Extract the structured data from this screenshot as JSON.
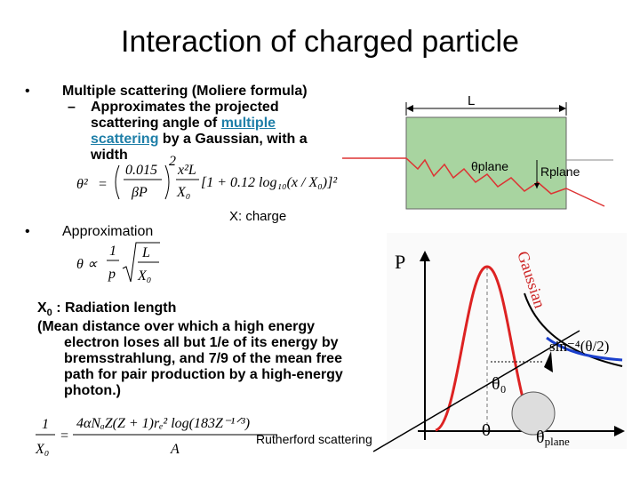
{
  "title": "Interaction of charged particle",
  "bullets": [
    {
      "marker": "•",
      "text": "Multiple scattering (Moliere formula)",
      "sub": {
        "marker": "–",
        "before": "Approximates the projected scattering angle of ",
        "link": "multiple scattering",
        "after": " by a Gaussian, with a width"
      },
      "formula": {
        "lhs": "θ²",
        "eq": "=",
        "num1": "0.015",
        "den1": "βP",
        "pow": "2",
        "num2": "x²L",
        "den2": "X₀",
        "rest": "[1 + 0.12 log₁₀(x / X₀)]²"
      }
    },
    {
      "marker": "•",
      "text": "Approximation",
      "formula": {
        "lhs": "θ ∝",
        "num1": "1",
        "den1": "p",
        "num2": "L",
        "den2": "X₀"
      }
    }
  ],
  "note": "X: charge",
  "radiation_length": {
    "symbol": "X",
    "subscript": "0",
    "label": " : Radiation length",
    "description": "(Mean distance over which a high energy electron loses all but 1/e of its energy by bremsstrahlung, and 7/9 of the mean free path for pair production by a high-energy photon.)"
  },
  "formula_x0": {
    "num1": "1",
    "den1": "X₀",
    "eq": "=",
    "num2": "4αNₐZ(Z + 1)rₑ² log(183Z⁻¹ᐟ³)",
    "den2": "A"
  },
  "rutherford": "Rutherford scattering",
  "diagram": {
    "length": "L",
    "angle": "θplane",
    "offset": "Rplane"
  },
  "plot": {
    "y_label": "P",
    "gaussian": "Gaussian",
    "tail": "sin⁻⁴(θ/2)",
    "theta0": "θ₀",
    "origin": "0",
    "x_symbol": "θ",
    "x_sub": "plane"
  }
}
